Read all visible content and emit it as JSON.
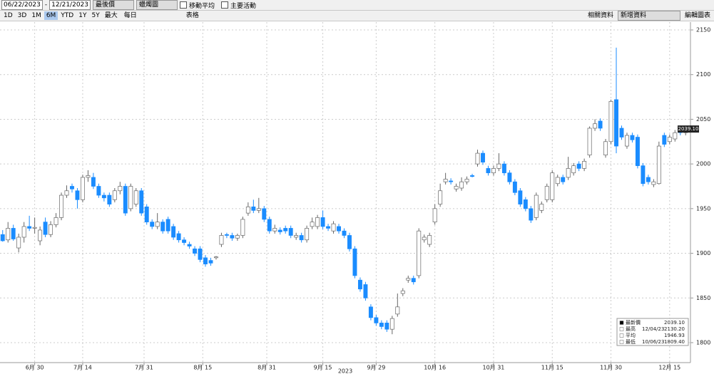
{
  "toolbar": {
    "start_date": "06/22/2023",
    "dash": "-",
    "end_date": "12/21/2023",
    "field": "最後價",
    "style": "蠟燭圖",
    "moving_average": "移動平均",
    "events": "主要活動",
    "periods": [
      "1D",
      "3D",
      "1M",
      "6M",
      "YTD",
      "1Y",
      "5Y",
      "最大"
    ],
    "selected_period": 3,
    "frequency": "每日",
    "table": "表格",
    "related": "相關資料",
    "add_data": "新增資料",
    "edit_chart": "編輯圖表"
  },
  "chart_data": {
    "type": "candlestick",
    "year_label": "2023",
    "up_color": "#ffffff",
    "down_color": "#1a8cff",
    "grid": true,
    "open": [
      1921,
      1915,
      1928,
      1906,
      1918,
      1930,
      1928,
      1914,
      1935,
      1921,
      1932,
      1940,
      1965,
      1975,
      1970,
      1960,
      1985,
      1985,
      1975,
      1965,
      1965,
      1960,
      1970,
      1975,
      1950,
      1955,
      1970,
      1952,
      1935,
      1930,
      1935,
      1938,
      1930,
      1922,
      1915,
      1910,
      1905,
      1905,
      1895,
      1892,
      1895,
      1910,
      1921,
      1920,
      1917,
      1920,
      1945,
      1952,
      1948,
      1950,
      1938,
      1925,
      1926,
      1928,
      1928,
      1918,
      1920,
      1915,
      1930,
      1930,
      1940,
      1930,
      1925,
      1930,
      1925,
      1920,
      1905,
      1870,
      1865,
      1840,
      1828,
      1822,
      1822,
      1815,
      1832,
      1855,
      1870,
      1872,
      1875,
      1915,
      1910,
      1935,
      1955,
      1980,
      1981,
      1972,
      1973,
      1980,
      1987,
      2000,
      2012,
      1995,
      1990,
      1995,
      2000,
      1990,
      1980,
      1970,
      1960,
      1950,
      1940,
      1948,
      1960,
      1960,
      1978,
      1985,
      1985,
      1990,
      2000,
      1995,
      2010,
      2040,
      2048,
      2010,
      2025,
      2072,
      2040,
      2020,
      2032,
      2030,
      1998,
      1985,
      1977,
      1978,
      2032,
      2025,
      2028,
      2038,
      2035
    ],
    "high": [
      1926,
      1935,
      1932,
      1922,
      1935,
      1942,
      1940,
      1930,
      1940,
      1936,
      1945,
      1968,
      1976,
      1978,
      1973,
      1988,
      1993,
      1990,
      1978,
      1968,
      1968,
      1973,
      1980,
      1978,
      1978,
      1973,
      1973,
      1955,
      1938,
      1945,
      1938,
      1941,
      1933,
      1925,
      1918,
      1913,
      1908,
      1908,
      1898,
      1895,
      1897,
      1923,
      1923,
      1923,
      1922,
      1941,
      1957,
      1960,
      1962,
      1953,
      1941,
      1932,
      1929,
      1931,
      1931,
      1923,
      1923,
      1931,
      1940,
      1943,
      1948,
      1933,
      1936,
      1933,
      1928,
      1923,
      1908,
      1873,
      1868,
      1843,
      1831,
      1825,
      1825,
      1830,
      1855,
      1861,
      1875,
      1875,
      1928,
      1921,
      1923,
      1955,
      1978,
      1990,
      1984,
      1978,
      1985,
      1986,
      1989,
      2016,
      2015,
      1998,
      1998,
      2012,
      2003,
      1993,
      1983,
      1973,
      1963,
      1953,
      1968,
      1958,
      1978,
      1993,
      1988,
      1988,
      2008,
      2001,
      2003,
      2006,
      2042,
      2050,
      2051,
      2028,
      2072,
      2130.2,
      2043,
      2035,
      2035,
      2033,
      2001,
      1988,
      1983,
      2025,
      2035,
      2033,
      2038,
      2041,
      2042
    ],
    "low": [
      1913,
      1912,
      1914,
      1901,
      1912,
      1925,
      1922,
      1909,
      1918,
      1918,
      1929,
      1937,
      1962,
      1968,
      1950,
      1957,
      1980,
      1972,
      1962,
      1958,
      1952,
      1957,
      1966,
      1942,
      1947,
      1952,
      1942,
      1932,
      1927,
      1927,
      1922,
      1922,
      1915,
      1912,
      1909,
      1905,
      1897,
      1890,
      1885,
      1886,
      1893,
      1907,
      1917,
      1914,
      1914,
      1917,
      1942,
      1945,
      1945,
      1935,
      1922,
      1922,
      1921,
      1922,
      1917,
      1915,
      1912,
      1912,
      1927,
      1927,
      1927,
      1925,
      1922,
      1922,
      1917,
      1902,
      1872,
      1857,
      1847,
      1825,
      1819,
      1815,
      1812,
      1809.4,
      1829,
      1852,
      1867,
      1865,
      1872,
      1912,
      1907,
      1932,
      1952,
      1977,
      1977,
      1969,
      1970,
      1977,
      1985,
      1997,
      1999,
      1987,
      1987,
      1992,
      1987,
      1977,
      1965,
      1952,
      1947,
      1934,
      1937,
      1945,
      1957,
      1957,
      1975,
      1977,
      1982,
      1987,
      1992,
      1992,
      2007,
      2037,
      2037,
      2007,
      2022,
      2012,
      2027,
      2017,
      2024,
      1995,
      1975,
      1977,
      1974,
      1977,
      2019,
      2022,
      2025,
      2032,
      2032
    ],
    "close": [
      1914,
      1928,
      1916,
      1918,
      1930,
      1928,
      1929,
      1926,
      1921,
      1932,
      1940,
      1965,
      1970,
      1972,
      1960,
      1985,
      1987,
      1975,
      1965,
      1962,
      1955,
      1970,
      1975,
      1945,
      1975,
      1970,
      1945,
      1935,
      1930,
      1935,
      1925,
      1925,
      1918,
      1915,
      1912,
      1908,
      1900,
      1893,
      1888,
      1889,
      1896,
      1920,
      1920,
      1917,
      1920,
      1938,
      1952,
      1948,
      1950,
      1938,
      1925,
      1928,
      1924,
      1925,
      1920,
      1920,
      1915,
      1928,
      1935,
      1940,
      1930,
      1928,
      1933,
      1925,
      1920,
      1905,
      1875,
      1860,
      1850,
      1828,
      1822,
      1818,
      1815,
      1827,
      1840,
      1858,
      1872,
      1868,
      1925,
      1918,
      1920,
      1950,
      1970,
      1983,
      1980,
      1975,
      1980,
      1983,
      1986,
      2012,
      2002,
      1990,
      1995,
      2000,
      1990,
      1980,
      1968,
      1955,
      1950,
      1937,
      1965,
      1955,
      1975,
      1990,
      1985,
      1980,
      1995,
      1998,
      1995,
      2003,
      2040,
      2045,
      2040,
      2025,
      2070,
      2020,
      2030,
      2032,
      2027,
      1998,
      1978,
      1980,
      1980,
      2020,
      2022,
      2030,
      2035,
      2035,
      2039.1
    ],
    "last_value_label": "2039.10",
    "xlim": [
      -0.5,
      128.5
    ],
    "xticks": [
      {
        "value": 6,
        "label": "6月 30"
      },
      {
        "value": 15,
        "label": "7月 14"
      },
      {
        "value": 26.5,
        "label": "7月 31"
      },
      {
        "value": 37.5,
        "label": "8月 15"
      },
      {
        "value": 49.5,
        "label": "8月 31"
      },
      {
        "value": 60,
        "label": "9月 15"
      },
      {
        "value": 70,
        "label": "9月 29"
      },
      {
        "value": 81,
        "label": "10月 16"
      },
      {
        "value": 92,
        "label": "10月 31"
      },
      {
        "value": 103,
        "label": "11月 15"
      },
      {
        "value": 114,
        "label": "11月 30"
      },
      {
        "value": 125,
        "label": "12月 15"
      }
    ],
    "ylim": [
      1770,
      2156
    ],
    "yticks": [
      1800,
      1850,
      1900,
      1950,
      2000,
      2050,
      2100,
      2150
    ],
    "stats": [
      {
        "label": "最新價",
        "value": "2039.10"
      },
      {
        "label": "最高",
        "date": "12/04/23",
        "value": "2130.20"
      },
      {
        "label": "平均",
        "value": "1946.93"
      },
      {
        "label": "最低",
        "date": "10/06/23",
        "value": "1809.40"
      }
    ]
  }
}
